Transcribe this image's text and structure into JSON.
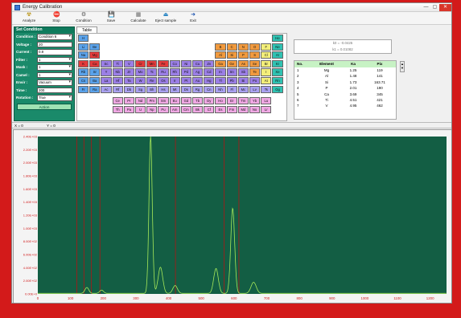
{
  "window": {
    "title": "Energy Calibration",
    "controls": [
      "—",
      "▢",
      "✕"
    ]
  },
  "toolbar": [
    {
      "name": "analyze",
      "label": "Analyze",
      "icon": "☢",
      "color": "#b48a00"
    },
    {
      "name": "stop",
      "label": "Stop",
      "icon": "⛔",
      "color": "#d12c2c"
    },
    {
      "name": "condition",
      "label": "Condition",
      "icon": "⚙",
      "color": "#555555"
    },
    {
      "name": "save",
      "label": "Save",
      "icon": "💾",
      "color": "#2a55b0"
    },
    {
      "name": "calculate",
      "label": "Calculate",
      "icon": "▦",
      "color": "#6a6a6a"
    },
    {
      "name": "eject-sample",
      "label": "Eject sample",
      "icon": "⏏",
      "color": "#1f7fc0"
    },
    {
      "name": "exit",
      "label": "Exit",
      "icon": "➜",
      "color": "#1f55b0"
    }
  ],
  "set_condition": {
    "title": "Set Condition",
    "fields": [
      {
        "name": "condition",
        "label": "Condition :",
        "value": "Condition 6",
        "dropdown": true
      },
      {
        "name": "voltage",
        "label": "Voltage :",
        "value": "20",
        "dropdown": false
      },
      {
        "name": "current",
        "label": "Current :",
        "value": "0.9",
        "dropdown": false
      },
      {
        "name": "filter",
        "label": "Filter :",
        "value": "1",
        "dropdown": true
      },
      {
        "name": "mask",
        "label": "Mask :",
        "value": "1",
        "dropdown": true
      },
      {
        "name": "camel",
        "label": "Camel :",
        "value": "1",
        "dropdown": true
      },
      {
        "name": "atmosphere",
        "label": "Envir :",
        "value": "Vacuum",
        "dropdown": true
      },
      {
        "name": "time",
        "label": "Time :",
        "value": "200",
        "dropdown": false
      },
      {
        "name": "rotation",
        "label": "Rotation :",
        "value": "True",
        "dropdown": true
      }
    ],
    "action_label": "Action"
  },
  "periodic": {
    "tab_label": "Table",
    "colors": {
      "blue": "#5aa2ea",
      "red": "#e33b3b",
      "purple": "#9b7fe6",
      "lavender": "#a9a1f0",
      "orange": "#f19a3e",
      "yellow": "#f3ee7a",
      "teal": "#2fc2b2",
      "pink": "#f0a8e4",
      "white": "#f6f6f6"
    },
    "elements": [
      {
        "s": "H",
        "r": 0,
        "c": 0,
        "t": "blue"
      },
      {
        "s": "He",
        "r": 0,
        "c": 17,
        "t": "teal"
      },
      {
        "s": "Li",
        "r": 1,
        "c": 0,
        "t": "blue"
      },
      {
        "s": "Be",
        "r": 1,
        "c": 1,
        "t": "blue"
      },
      {
        "s": "B",
        "r": 1,
        "c": 12,
        "t": "orange"
      },
      {
        "s": "C",
        "r": 1,
        "c": 13,
        "t": "orange"
      },
      {
        "s": "N",
        "r": 1,
        "c": 14,
        "t": "orange"
      },
      {
        "s": "O",
        "r": 1,
        "c": 15,
        "t": "orange"
      },
      {
        "s": "F",
        "r": 1,
        "c": 16,
        "t": "yellow"
      },
      {
        "s": "Ne",
        "r": 1,
        "c": 17,
        "t": "teal"
      },
      {
        "s": "Na",
        "r": 2,
        "c": 0,
        "t": "blue"
      },
      {
        "s": "Mg",
        "r": 2,
        "c": 1,
        "t": "red"
      },
      {
        "s": "Al",
        "r": 2,
        "c": 12,
        "t": "orange"
      },
      {
        "s": "Si",
        "r": 2,
        "c": 13,
        "t": "orange"
      },
      {
        "s": "P",
        "r": 2,
        "c": 14,
        "t": "orange"
      },
      {
        "s": "S",
        "r": 2,
        "c": 15,
        "t": "orange"
      },
      {
        "s": "Cl",
        "r": 2,
        "c": 16,
        "t": "yellow"
      },
      {
        "s": "Ar",
        "r": 2,
        "c": 17,
        "t": "teal"
      },
      {
        "s": "K",
        "r": 3,
        "c": 0,
        "t": "red"
      },
      {
        "s": "Ca",
        "r": 3,
        "c": 1,
        "t": "red"
      },
      {
        "s": "Sc",
        "r": 3,
        "c": 2,
        "t": "purple"
      },
      {
        "s": "Ti",
        "r": 3,
        "c": 3,
        "t": "purple"
      },
      {
        "s": "V",
        "r": 3,
        "c": 4,
        "t": "purple"
      },
      {
        "s": "Cr",
        "r": 3,
        "c": 5,
        "t": "red"
      },
      {
        "s": "Mn",
        "r": 3,
        "c": 6,
        "t": "red"
      },
      {
        "s": "Fe",
        "r": 3,
        "c": 7,
        "t": "red"
      },
      {
        "s": "Co",
        "r": 3,
        "c": 8,
        "t": "purple"
      },
      {
        "s": "Ni",
        "r": 3,
        "c": 9,
        "t": "purple"
      },
      {
        "s": "Cu",
        "r": 3,
        "c": 10,
        "t": "purple"
      },
      {
        "s": "Zn",
        "r": 3,
        "c": 11,
        "t": "purple"
      },
      {
        "s": "Ga",
        "r": 3,
        "c": 12,
        "t": "orange"
      },
      {
        "s": "Ge",
        "r": 3,
        "c": 13,
        "t": "orange"
      },
      {
        "s": "As",
        "r": 3,
        "c": 14,
        "t": "orange"
      },
      {
        "s": "Se",
        "r": 3,
        "c": 15,
        "t": "orange"
      },
      {
        "s": "Br",
        "r": 3,
        "c": 16,
        "t": "yellow"
      },
      {
        "s": "Kr",
        "r": 3,
        "c": 17,
        "t": "teal"
      },
      {
        "s": "Rb",
        "r": 4,
        "c": 0,
        "t": "blue"
      },
      {
        "s": "Sr",
        "r": 4,
        "c": 1,
        "t": "blue"
      },
      {
        "s": "Y",
        "r": 4,
        "c": 2,
        "t": "purple"
      },
      {
        "s": "Nb",
        "r": 4,
        "c": 3,
        "t": "purple"
      },
      {
        "s": "Zr",
        "r": 4,
        "c": 4,
        "t": "purple"
      },
      {
        "s": "Mo",
        "r": 4,
        "c": 5,
        "t": "purple"
      },
      {
        "s": "Tc",
        "r": 4,
        "c": 6,
        "t": "purple"
      },
      {
        "s": "Ru",
        "r": 4,
        "c": 7,
        "t": "purple"
      },
      {
        "s": "Rh",
        "r": 4,
        "c": 8,
        "t": "purple"
      },
      {
        "s": "Pd",
        "r": 4,
        "c": 9,
        "t": "purple"
      },
      {
        "s": "Ag",
        "r": 4,
        "c": 10,
        "t": "purple"
      },
      {
        "s": "Cd",
        "r": 4,
        "c": 11,
        "t": "purple"
      },
      {
        "s": "In",
        "r": 4,
        "c": 12,
        "t": "purple"
      },
      {
        "s": "Sn",
        "r": 4,
        "c": 13,
        "t": "purple"
      },
      {
        "s": "Sb",
        "r": 4,
        "c": 14,
        "t": "purple"
      },
      {
        "s": "Te",
        "r": 4,
        "c": 15,
        "t": "orange"
      },
      {
        "s": "I",
        "r": 4,
        "c": 16,
        "t": "yellow"
      },
      {
        "s": "Xe",
        "r": 4,
        "c": 17,
        "t": "teal"
      },
      {
        "s": "Cs",
        "r": 5,
        "c": 0,
        "t": "blue"
      },
      {
        "s": "Ba",
        "r": 5,
        "c": 1,
        "t": "blue"
      },
      {
        "s": "La",
        "r": 5,
        "c": 2,
        "t": "purple"
      },
      {
        "s": "Hf",
        "r": 5,
        "c": 3,
        "t": "purple"
      },
      {
        "s": "Ta",
        "r": 5,
        "c": 4,
        "t": "purple"
      },
      {
        "s": "W",
        "r": 5,
        "c": 5,
        "t": "purple"
      },
      {
        "s": "Re",
        "r": 5,
        "c": 6,
        "t": "purple"
      },
      {
        "s": "Os",
        "r": 5,
        "c": 7,
        "t": "purple"
      },
      {
        "s": "Ir",
        "r": 5,
        "c": 8,
        "t": "purple"
      },
      {
        "s": "Pt",
        "r": 5,
        "c": 9,
        "t": "purple"
      },
      {
        "s": "Au",
        "r": 5,
        "c": 10,
        "t": "purple"
      },
      {
        "s": "Hg",
        "r": 5,
        "c": 11,
        "t": "purple"
      },
      {
        "s": "Tl",
        "r": 5,
        "c": 12,
        "t": "purple"
      },
      {
        "s": "Pb",
        "r": 5,
        "c": 13,
        "t": "purple"
      },
      {
        "s": "Bi",
        "r": 5,
        "c": 14,
        "t": "purple"
      },
      {
        "s": "Po",
        "r": 5,
        "c": 15,
        "t": "purple"
      },
      {
        "s": "At",
        "r": 5,
        "c": 16,
        "t": "yellow"
      },
      {
        "s": "Rn",
        "r": 5,
        "c": 17,
        "t": "teal"
      },
      {
        "s": "Fr",
        "r": 6,
        "c": 0,
        "t": "blue"
      },
      {
        "s": "Ra",
        "r": 6,
        "c": 1,
        "t": "blue"
      },
      {
        "s": "Ac",
        "r": 6,
        "c": 2,
        "t": "lavender"
      },
      {
        "s": "Rf",
        "r": 6,
        "c": 3,
        "t": "lavender"
      },
      {
        "s": "Db",
        "r": 6,
        "c": 4,
        "t": "lavender"
      },
      {
        "s": "Sg",
        "r": 6,
        "c": 5,
        "t": "lavender"
      },
      {
        "s": "Bh",
        "r": 6,
        "c": 6,
        "t": "lavender"
      },
      {
        "s": "Hs",
        "r": 6,
        "c": 7,
        "t": "lavender"
      },
      {
        "s": "Mt",
        "r": 6,
        "c": 8,
        "t": "lavender"
      },
      {
        "s": "Ds",
        "r": 6,
        "c": 9,
        "t": "lavender"
      },
      {
        "s": "Rg",
        "r": 6,
        "c": 10,
        "t": "lavender"
      },
      {
        "s": "Cn",
        "r": 6,
        "c": 11,
        "t": "lavender"
      },
      {
        "s": "Nh",
        "r": 6,
        "c": 12,
        "t": "lavender"
      },
      {
        "s": "Fl",
        "r": 6,
        "c": 13,
        "t": "lavender"
      },
      {
        "s": "Mc",
        "r": 6,
        "c": 14,
        "t": "lavender"
      },
      {
        "s": "Lv",
        "r": 6,
        "c": 15,
        "t": "lavender"
      },
      {
        "s": "Ts",
        "r": 6,
        "c": 16,
        "t": "lavender"
      },
      {
        "s": "Og",
        "r": 6,
        "c": 17,
        "t": "teal"
      },
      {
        "s": "Ce",
        "r": 7,
        "c": 3,
        "t": "pink"
      },
      {
        "s": "Pr",
        "r": 7,
        "c": 4,
        "t": "pink"
      },
      {
        "s": "Nd",
        "r": 7,
        "c": 5,
        "t": "pink"
      },
      {
        "s": "Pm",
        "r": 7,
        "c": 6,
        "t": "pink"
      },
      {
        "s": "Sm",
        "r": 7,
        "c": 7,
        "t": "pink"
      },
      {
        "s": "Eu",
        "r": 7,
        "c": 8,
        "t": "pink"
      },
      {
        "s": "Gd",
        "r": 7,
        "c": 9,
        "t": "pink"
      },
      {
        "s": "Tb",
        "r": 7,
        "c": 10,
        "t": "pink"
      },
      {
        "s": "Dy",
        "r": 7,
        "c": 11,
        "t": "pink"
      },
      {
        "s": "Ho",
        "r": 7,
        "c": 12,
        "t": "pink"
      },
      {
        "s": "Er",
        "r": 7,
        "c": 13,
        "t": "pink"
      },
      {
        "s": "Tm",
        "r": 7,
        "c": 14,
        "t": "pink"
      },
      {
        "s": "Yb",
        "r": 7,
        "c": 15,
        "t": "pink"
      },
      {
        "s": "Lu",
        "r": 7,
        "c": 16,
        "t": "pink"
      },
      {
        "s": "Th",
        "r": 8,
        "c": 3,
        "t": "pink"
      },
      {
        "s": "Pa",
        "r": 8,
        "c": 4,
        "t": "pink"
      },
      {
        "s": "U",
        "r": 8,
        "c": 5,
        "t": "pink"
      },
      {
        "s": "Np",
        "r": 8,
        "c": 6,
        "t": "pink"
      },
      {
        "s": "Pu",
        "r": 8,
        "c": 7,
        "t": "pink"
      },
      {
        "s": "Am",
        "r": 8,
        "c": 8,
        "t": "pink"
      },
      {
        "s": "Cm",
        "r": 8,
        "c": 9,
        "t": "pink"
      },
      {
        "s": "Bk",
        "r": 8,
        "c": 10,
        "t": "pink"
      },
      {
        "s": "Cf",
        "r": 8,
        "c": 11,
        "t": "pink"
      },
      {
        "s": "Es",
        "r": 8,
        "c": 12,
        "t": "pink"
      },
      {
        "s": "Fm",
        "r": 8,
        "c": 13,
        "t": "pink"
      },
      {
        "s": "Md",
        "r": 8,
        "c": 14,
        "t": "pink"
      },
      {
        "s": "No",
        "r": 8,
        "c": 15,
        "t": "pink"
      },
      {
        "s": "Lr",
        "r": 8,
        "c": 16,
        "t": "pink"
      }
    ]
  },
  "calibration": {
    "line1": "k0 = -0.0425",
    "line2": "k1 = 0.01082"
  },
  "peak_table": {
    "headers": [
      "No.",
      "Element",
      "Ka",
      "Pix"
    ],
    "rows": [
      [
        "1",
        "Mg",
        "1.25",
        "119"
      ],
      [
        "2",
        "Al",
        "1.48",
        "141"
      ],
      [
        "3",
        "Si",
        "1.73",
        "163.71"
      ],
      [
        "4",
        "P",
        "2.01",
        "190"
      ],
      [
        "5",
        "Ca",
        "3.69",
        "345"
      ],
      [
        "6",
        "Ti",
        "4.51",
        "421"
      ],
      [
        "7",
        "V",
        "4.95",
        "462"
      ]
    ]
  },
  "status": {
    "x": "X = 0",
    "y": "Y = 0"
  },
  "chart_data": {
    "type": "line",
    "xlim": [
      0,
      1250
    ],
    "ylim": [
      0,
      2400
    ],
    "x_ticks": [
      0,
      100,
      200,
      300,
      400,
      500,
      600,
      700,
      800,
      900,
      1000,
      1100,
      1200
    ],
    "y_ticks": [
      0,
      200,
      400,
      600,
      800,
      1000,
      1200,
      1400,
      1600,
      1800,
      2000,
      2200,
      2400
    ],
    "y_tick_labels": [
      "0.00E+0",
      "2.00E+02",
      "4.00E+02",
      "6.00E+02",
      "8.00E+02",
      "1.00E+03",
      "1.20E+03",
      "1.40E+03",
      "1.60E+03",
      "1.80E+03",
      "2.00E+03",
      "2.20E+03",
      "2.40E+03"
    ],
    "marker_lines_x": [
      119,
      141,
      164,
      190,
      421,
      570,
      615
    ],
    "series": [
      {
        "peaks": [
          [
            150,
            90,
            6
          ],
          [
            195,
            50,
            6
          ],
          [
            345,
            2400,
            5
          ],
          [
            375,
            400,
            7
          ],
          [
            420,
            120,
            7
          ],
          [
            545,
            380,
            7
          ],
          [
            596,
            1300,
            6
          ],
          [
            660,
            170,
            8
          ]
        ]
      }
    ],
    "grid": false,
    "colors": {
      "background": "#135e44",
      "trace": "#a6e85a",
      "marker": "#b01515",
      "axis_text": "#d12020"
    }
  }
}
